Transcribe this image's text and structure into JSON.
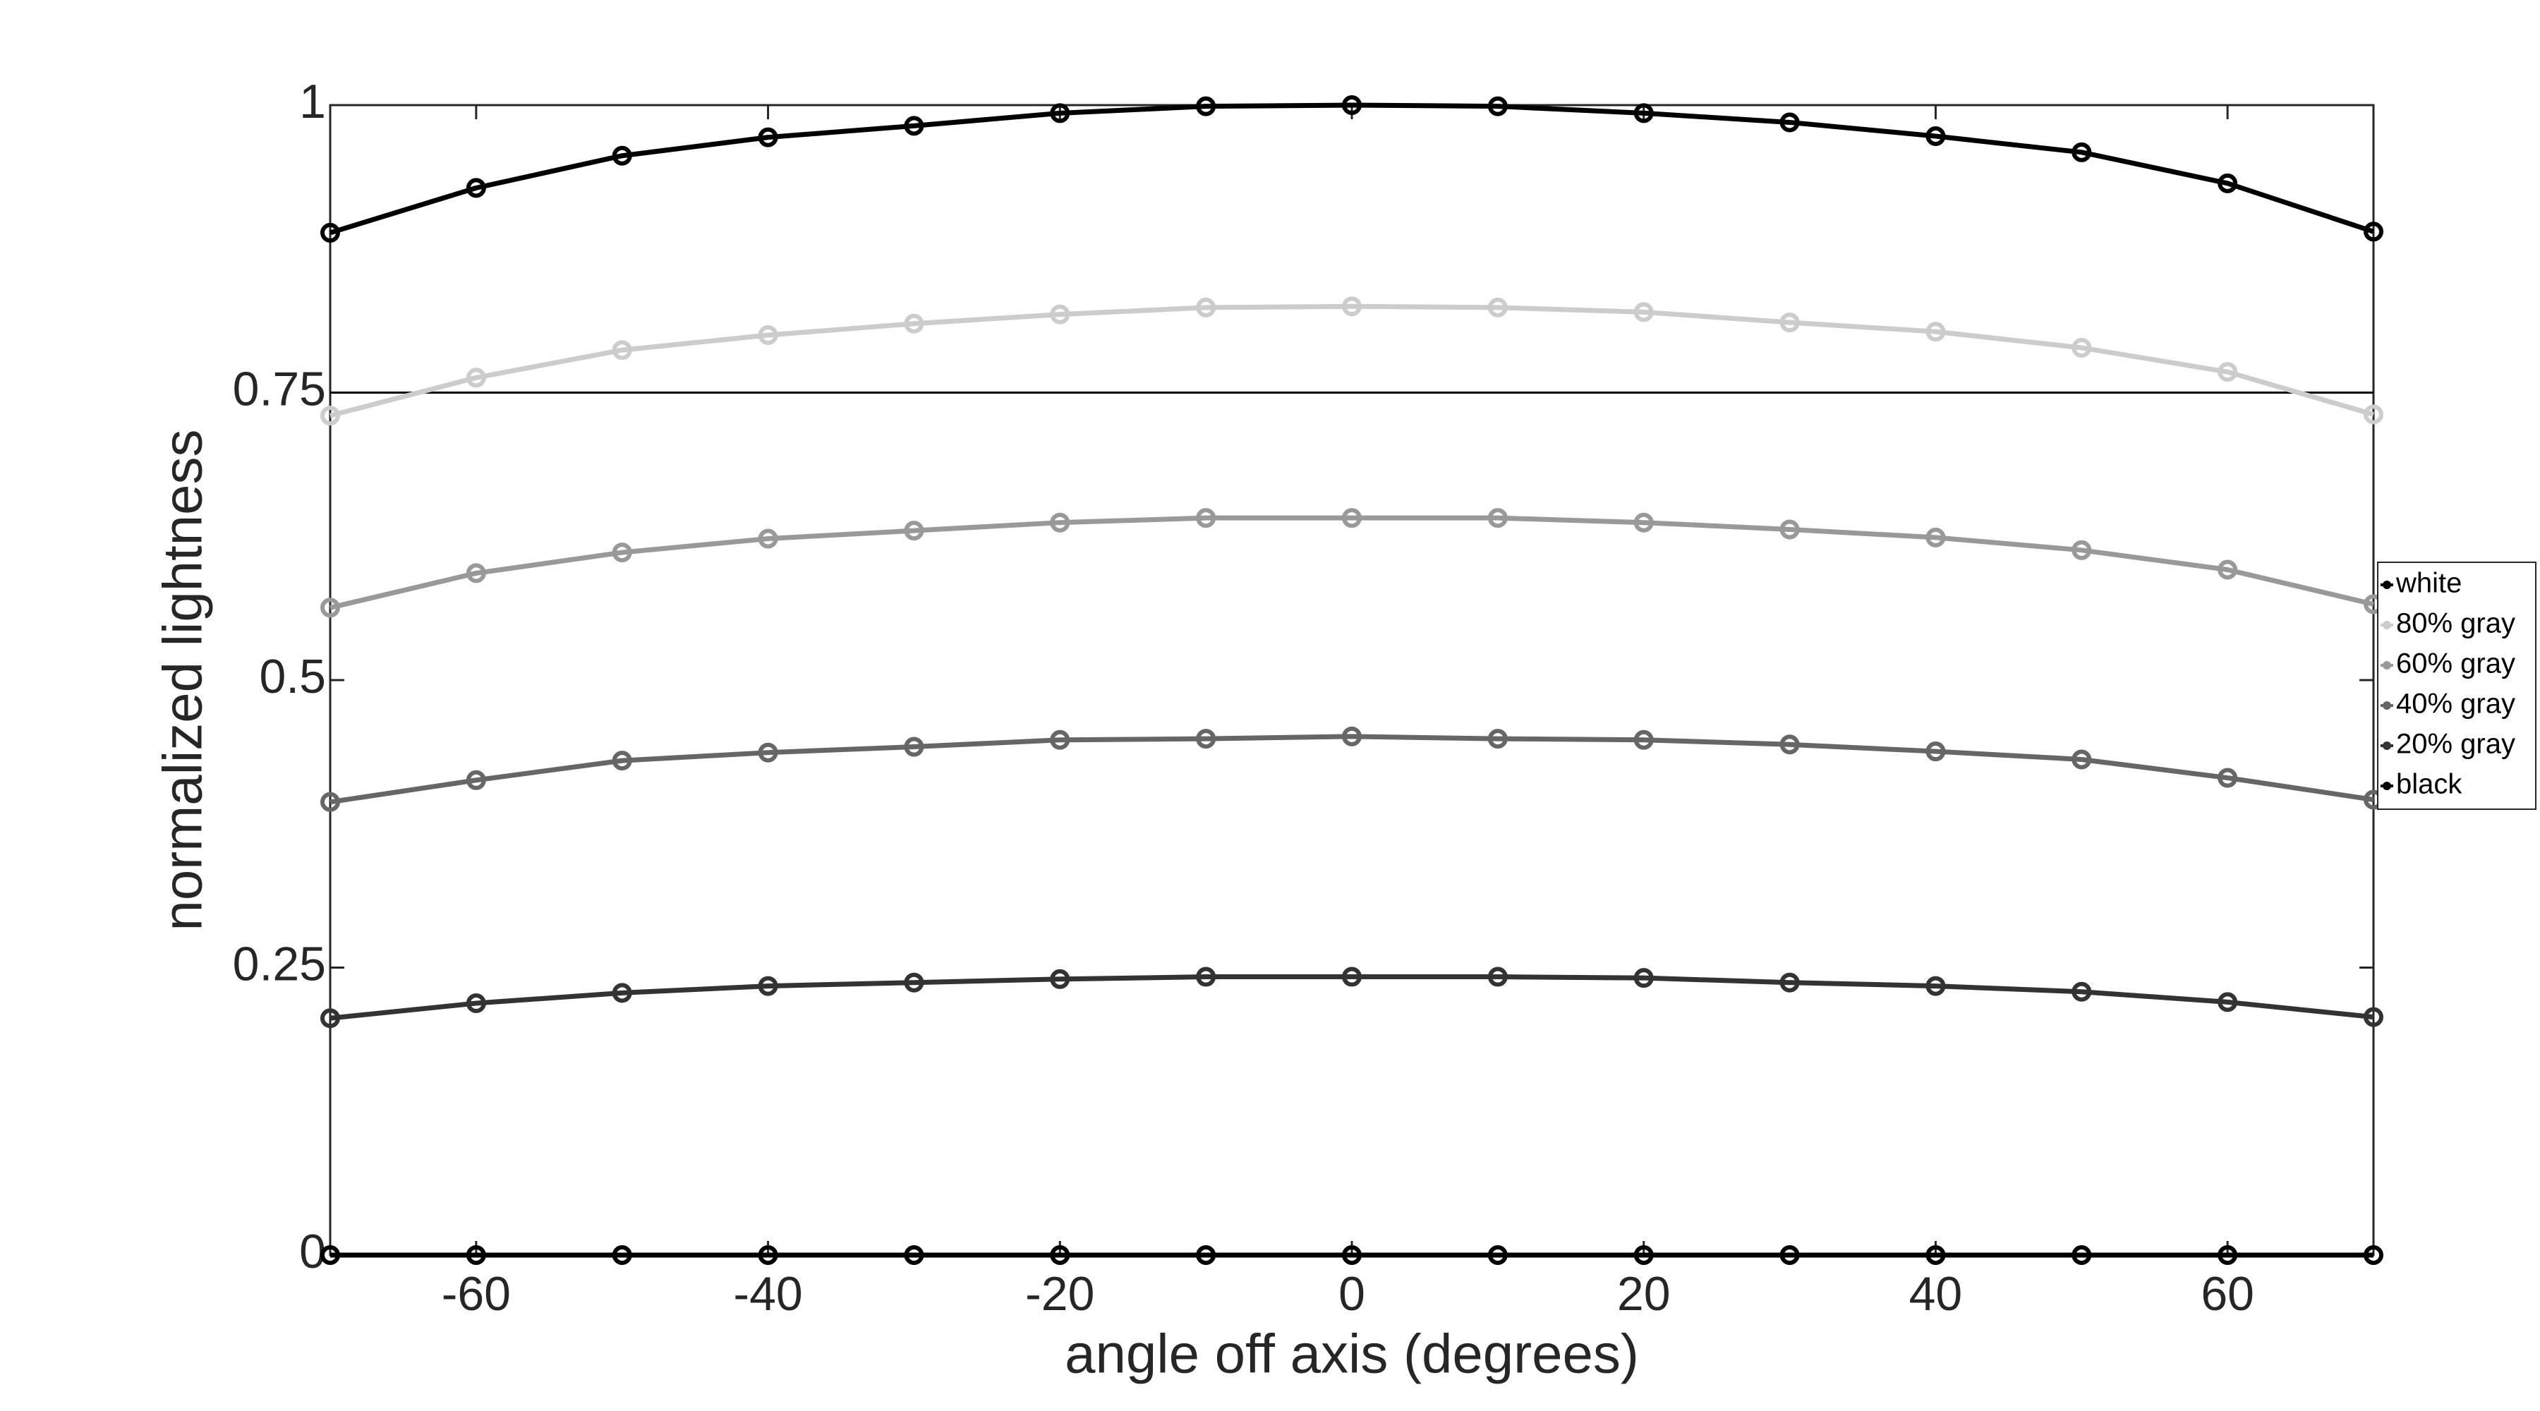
{
  "chart_data": {
    "type": "line",
    "xlabel": "angle off axis (degrees)",
    "ylabel": "normalized lightness",
    "x": [
      -70,
      -60,
      -50,
      -40,
      -30,
      -20,
      -10,
      0,
      10,
      20,
      30,
      40,
      50,
      60,
      70
    ],
    "xlim": [
      -70,
      70
    ],
    "xticks": [
      -60,
      -40,
      -20,
      0,
      20,
      40,
      60
    ],
    "ylim": [
      0,
      1
    ],
    "yticks": [
      0,
      0.25,
      0.5,
      0.75,
      1
    ],
    "reference_line": 0.75,
    "legend": "right",
    "series": [
      {
        "name": "white",
        "color": "#000000",
        "values": [
          0.889,
          0.928,
          0.956,
          0.972,
          0.982,
          0.993,
          0.999,
          1.0,
          0.999,
          0.993,
          0.985,
          0.973,
          0.959,
          0.932,
          0.89
        ]
      },
      {
        "name": "80% gray",
        "color": "#cccccc",
        "values": [
          0.73,
          0.763,
          0.787,
          0.8,
          0.81,
          0.818,
          0.824,
          0.825,
          0.824,
          0.82,
          0.811,
          0.803,
          0.789,
          0.768,
          0.731
        ]
      },
      {
        "name": "60% gray",
        "color": "#999999",
        "values": [
          0.563,
          0.593,
          0.611,
          0.623,
          0.63,
          0.637,
          0.641,
          0.641,
          0.641,
          0.637,
          0.631,
          0.624,
          0.613,
          0.596,
          0.566
        ]
      },
      {
        "name": "40% gray",
        "color": "#666666",
        "values": [
          0.394,
          0.413,
          0.43,
          0.437,
          0.442,
          0.448,
          0.449,
          0.451,
          0.449,
          0.448,
          0.444,
          0.438,
          0.431,
          0.415,
          0.396
        ]
      },
      {
        "name": "20% gray",
        "color": "#333333",
        "values": [
          0.206,
          0.219,
          0.228,
          0.234,
          0.237,
          0.24,
          0.242,
          0.242,
          0.242,
          0.241,
          0.237,
          0.234,
          0.229,
          0.22,
          0.207
        ]
      },
      {
        "name": "black",
        "color": "#000000",
        "values": [
          0,
          0,
          0,
          0,
          0,
          0,
          0,
          0,
          0,
          0,
          0,
          0,
          0,
          0,
          0
        ]
      }
    ]
  }
}
